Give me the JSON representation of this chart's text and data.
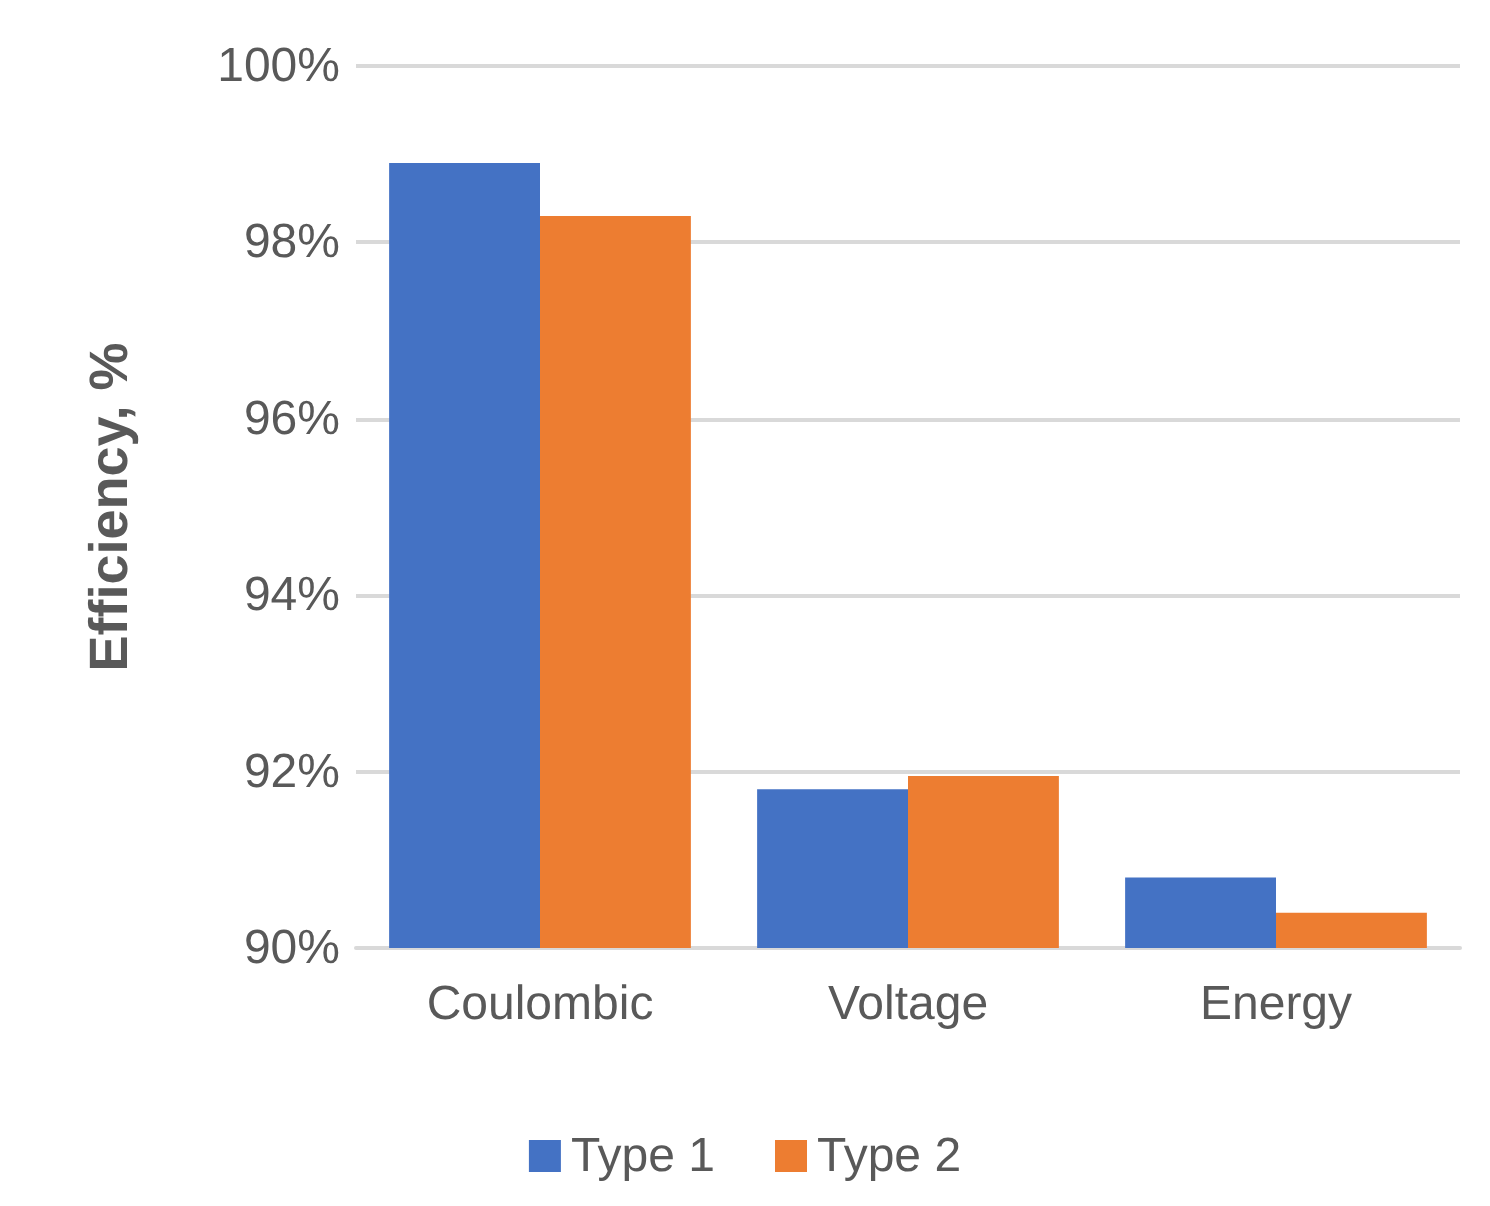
{
  "chart_data": {
    "type": "bar",
    "ylabel": "Efficiency, %",
    "categories": [
      "Coulombic",
      "Voltage",
      "Energy"
    ],
    "series": [
      {
        "name": "Type 1",
        "color": "#4472c4",
        "values": [
          98.9,
          91.8,
          90.8
        ]
      },
      {
        "name": "Type 2",
        "color": "#ed7d31",
        "values": [
          98.3,
          91.95,
          90.4
        ]
      }
    ],
    "ylim": [
      90,
      100
    ],
    "yticks": [
      {
        "value": 90,
        "label": "90%"
      },
      {
        "value": 92,
        "label": "92%"
      },
      {
        "value": 94,
        "label": "94%"
      },
      {
        "value": 96,
        "label": "96%"
      },
      {
        "value": 98,
        "label": "98%"
      },
      {
        "value": 100,
        "label": "100%"
      }
    ],
    "grid": "y",
    "legend": "bottom"
  }
}
